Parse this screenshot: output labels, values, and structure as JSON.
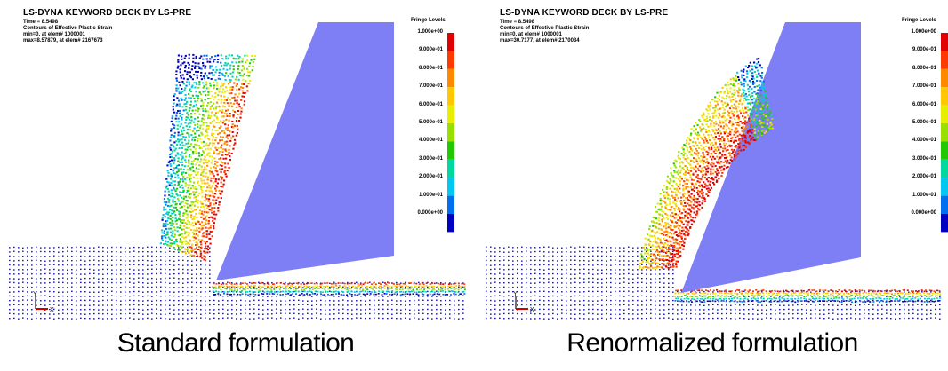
{
  "panels": [
    {
      "header": {
        "title": "LS-DYNA KEYWORD DECK BY LS-PRE",
        "time": "Time =      8.5498",
        "contours": "Contours of Effective Plastic Strain",
        "min": "min=0, at elem# 1000001",
        "max": "max=8.57879, at elem# 2167673"
      },
      "fringe_title": "Fringe Levels",
      "fringe_values": [
        "1.000e+00",
        "9.000e-01",
        "8.000e-01",
        "7.000e-01",
        "6.000e-01",
        "5.000e-01",
        "4.000e-01",
        "3.000e-01",
        "2.000e-01",
        "1.000e-01",
        "0.000e+00"
      ],
      "axis": {
        "y": "Y",
        "x": "X"
      },
      "caption": "Standard formulation"
    },
    {
      "header": {
        "title": "LS-DYNA KEYWORD DECK BY LS-PRE",
        "time": "Time =      8.5498",
        "contours": "Contours of Effective Plastic Strain",
        "min": "min=0, at elem# 1000001",
        "max": "max=30.7177, at elem# 2170034"
      },
      "fringe_title": "Fringe Levels",
      "fringe_values": [
        "1.000e+00",
        "9.000e-01",
        "8.000e-01",
        "7.000e-01",
        "6.000e-01",
        "5.000e-01",
        "4.000e-01",
        "3.000e-01",
        "2.000e-01",
        "1.000e-01",
        "0.000e+00"
      ],
      "axis": {
        "y": "Y",
        "x": "X"
      },
      "caption": "Renormalized formulation"
    }
  ],
  "colors": {
    "tool": "#7f7ff5",
    "fringe": [
      "#e00000",
      "#ff3a00",
      "#ff8a00",
      "#ffc800",
      "#e8ee00",
      "#98e000",
      "#22c800",
      "#00d8a0",
      "#00c8f0",
      "#0070f0",
      "#0000c0"
    ]
  }
}
